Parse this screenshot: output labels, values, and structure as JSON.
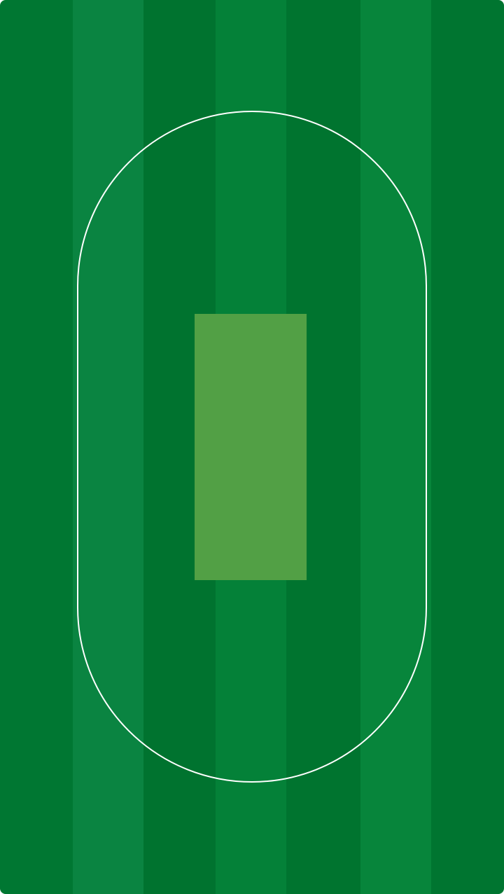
{
  "field": {
    "stripe_colors": [
      "#007732",
      "#0a8441",
      "#00732f",
      "#048138",
      "#00742f",
      "#07853b",
      "#007530"
    ],
    "boundary_color": "#ffffff",
    "pitch_color": "#52a045"
  }
}
